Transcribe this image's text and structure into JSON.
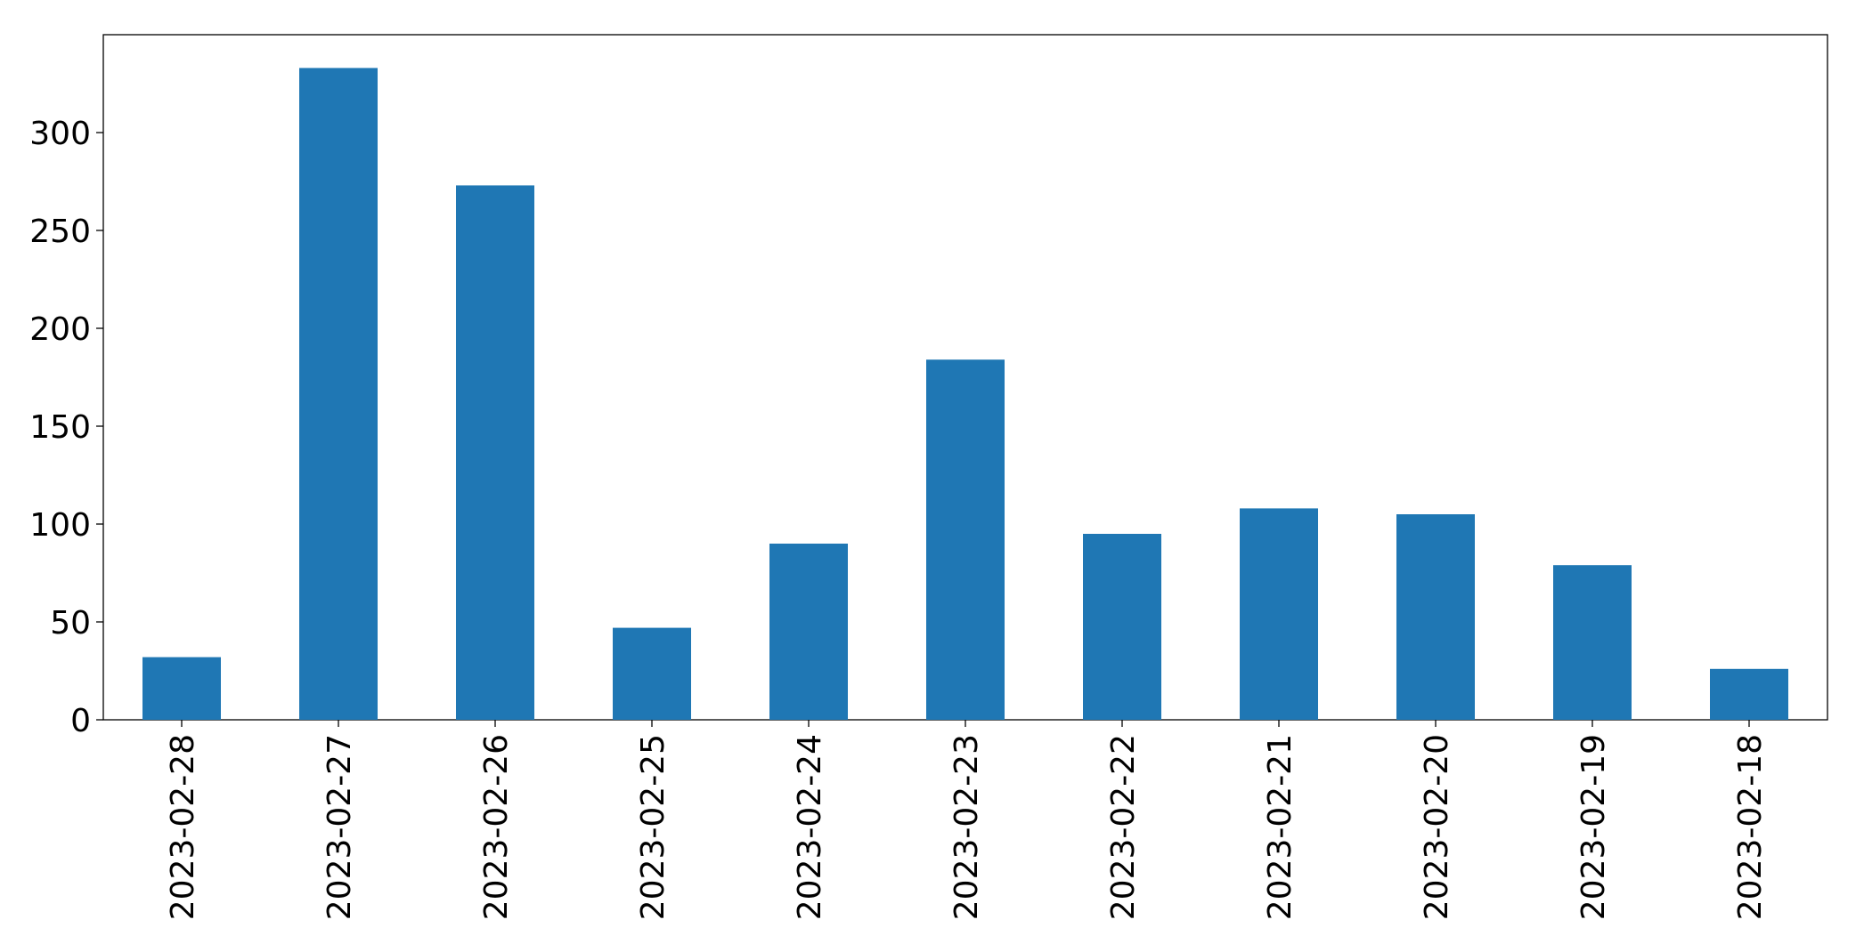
{
  "chart_data": {
    "type": "bar",
    "categories": [
      "2023-02-28",
      "2023-02-27",
      "2023-02-26",
      "2023-02-25",
      "2023-02-24",
      "2023-02-23",
      "2023-02-22",
      "2023-02-21",
      "2023-02-20",
      "2023-02-19",
      "2023-02-18"
    ],
    "values": [
      32,
      333,
      273,
      47,
      90,
      184,
      95,
      108,
      105,
      79,
      26
    ],
    "color": "#1f77b4",
    "ylim": [
      0,
      350
    ],
    "yticks": [
      0,
      50,
      100,
      150,
      200,
      250,
      300
    ],
    "grid": false
  }
}
